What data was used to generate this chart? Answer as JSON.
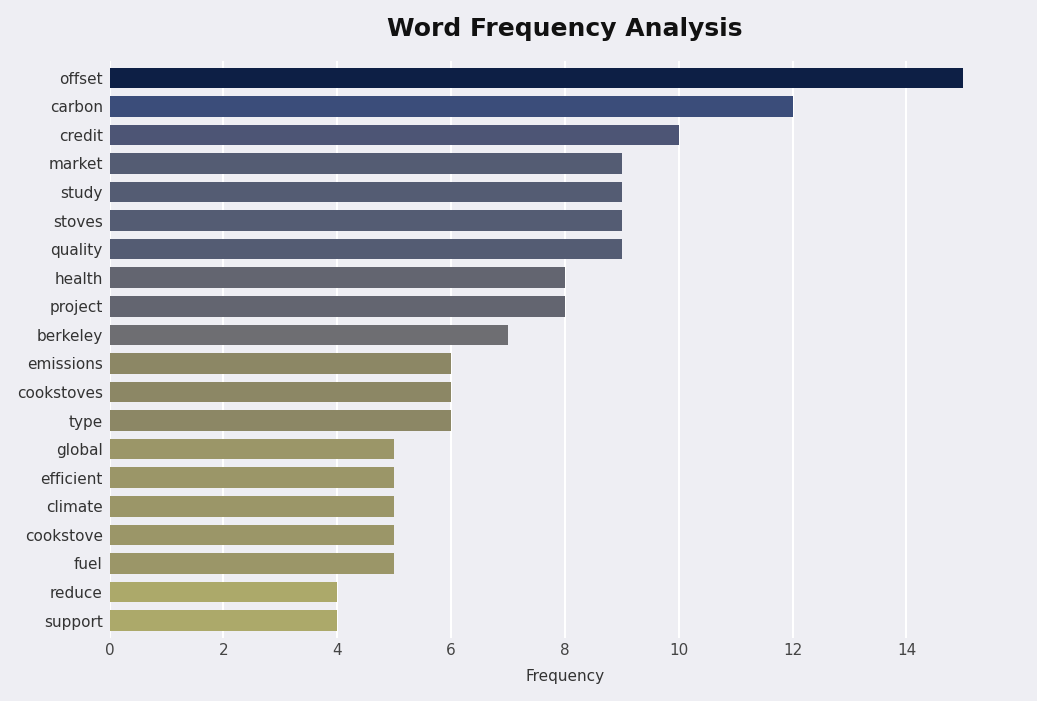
{
  "title": "Word Frequency Analysis",
  "categories": [
    "offset",
    "carbon",
    "credit",
    "market",
    "study",
    "stoves",
    "quality",
    "health",
    "project",
    "berkeley",
    "emissions",
    "cookstoves",
    "type",
    "global",
    "efficient",
    "climate",
    "cookstove",
    "fuel",
    "reduce",
    "support"
  ],
  "values": [
    15,
    12,
    10,
    9,
    9,
    9,
    9,
    8,
    8,
    7,
    6,
    6,
    6,
    5,
    5,
    5,
    5,
    5,
    4,
    4
  ],
  "colors": [
    "#0d1f45",
    "#3b4d7a",
    "#4d5575",
    "#545c73",
    "#545c73",
    "#545c73",
    "#545c73",
    "#636570",
    "#636570",
    "#6e6e72",
    "#8c8765",
    "#8c8765",
    "#8c8765",
    "#9b9668",
    "#9b9668",
    "#9b9668",
    "#9b9668",
    "#9b9668",
    "#aca96a",
    "#aca96a"
  ],
  "xlabel": "Frequency",
  "xlim": [
    0,
    16
  ],
  "xticks": [
    0,
    2,
    4,
    6,
    8,
    10,
    12,
    14
  ],
  "background_color": "#eeeef3",
  "plot_bg_color": "#eeeef3",
  "title_fontsize": 18,
  "label_fontsize": 11,
  "tick_fontsize": 11,
  "bar_height": 0.72
}
